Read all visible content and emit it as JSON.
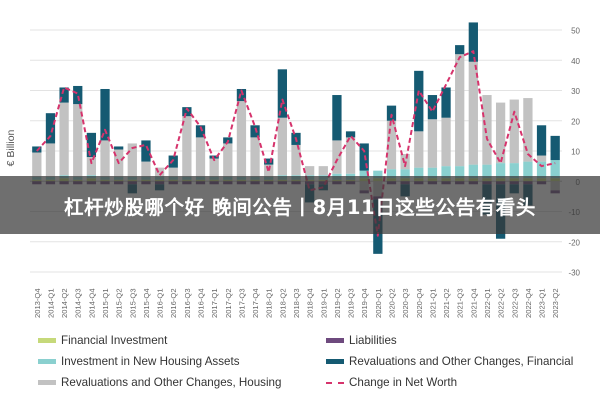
{
  "banner": {
    "text": "杠杆炒股哪个好 晚间公告丨8月11日这些公告有看头"
  },
  "colors": {
    "Financial Investment": "#c6d97a",
    "Investment in New Housing Assets": "#8ad0cf",
    "Revaluations and Other Changes, Housing": "#c2c2c2",
    "Liabilities": "#6e4a7e",
    "Revaluations and Other Changes, Financial": "#155a72",
    "Change in Net Worth": "#d6336c"
  },
  "chart_data": {
    "type": "bar",
    "stacked": true,
    "ylabel": "€ Billion",
    "ylim": [
      -30,
      50
    ],
    "yticks": [
      -30,
      -20,
      -10,
      0,
      10,
      20,
      30,
      40,
      50
    ],
    "grid": true,
    "legend_position": "bottom",
    "categories": [
      "2013-Q4",
      "2014-Q1",
      "2014-Q2",
      "2014-Q3",
      "2014-Q4",
      "2015-Q1",
      "2015-Q2",
      "2015-Q3",
      "2015-Q4",
      "2016-Q1",
      "2016-Q2",
      "2016-Q3",
      "2016-Q4",
      "2017-Q1",
      "2017-Q2",
      "2017-Q3",
      "2017-Q4",
      "2018-Q1",
      "2018-Q2",
      "2018-Q3",
      "2018-Q4",
      "2019-Q1",
      "2019-Q2",
      "2019-Q3",
      "2019-Q4",
      "2020-Q1",
      "2020-Q2",
      "2020-Q3",
      "2020-Q4",
      "2021-Q1",
      "2021-Q2",
      "2021-Q3",
      "2021-Q4",
      "2022-Q1",
      "2022-Q2",
      "2022-Q3",
      "2022-Q4",
      "2023-Q1",
      "2023-Q2"
    ],
    "series": [
      {
        "name": "Financial Investment",
        "kind": "bar",
        "values": [
          0.5,
          0.5,
          1,
          0.5,
          1,
          0.5,
          0.5,
          0.5,
          0.5,
          0.5,
          0.5,
          0.5,
          0.5,
          0.5,
          0.5,
          0.5,
          0.5,
          0.5,
          0.5,
          0.5,
          0.5,
          0.5,
          0.5,
          0.5,
          1,
          1,
          1,
          1,
          1,
          1,
          1,
          1,
          1,
          1,
          1,
          1,
          1,
          1,
          1
        ]
      },
      {
        "name": "Investment in New Housing Assets",
        "kind": "bar",
        "values": [
          1,
          1,
          1,
          1,
          1,
          1,
          1,
          1,
          1,
          1,
          1,
          1,
          1,
          1,
          1,
          1,
          1,
          1,
          1.5,
          1.5,
          1.5,
          1.5,
          2,
          2,
          2.5,
          2.5,
          3,
          3,
          3.5,
          3.5,
          4,
          4,
          4.5,
          4.5,
          5,
          5,
          5.5,
          5.5,
          6
        ]
      },
      {
        "name": "Revaluations and Other Changes, Housing",
        "kind": "bar",
        "values": [
          8,
          11,
          24,
          24,
          6,
          12,
          9,
          11,
          5,
          3,
          3,
          20,
          13,
          6,
          11,
          25,
          13,
          4,
          19,
          10,
          3,
          3,
          11,
          12,
          -3,
          -5,
          16,
          5,
          12,
          16,
          16,
          37,
          34,
          23,
          20,
          21,
          21,
          2,
          -3
        ]
      },
      {
        "name": "Liabilities",
        "kind": "bar",
        "values": [
          -1,
          -1,
          -1,
          -1,
          -1,
          -1,
          -1,
          -1,
          -1,
          -1,
          -1,
          -1,
          -1,
          -1,
          -1,
          -1,
          -1,
          -1,
          -1,
          -1,
          -1,
          -1,
          -1,
          -1,
          -1,
          -1,
          -1,
          -1,
          -1,
          -1,
          -1,
          -1,
          -1,
          -1,
          -1,
          -1,
          -1,
          -1,
          -1
        ]
      },
      {
        "name": "Revaluations and Other Changes, Financial",
        "kind": "bar",
        "values": [
          2,
          10,
          5,
          6,
          8,
          17,
          1,
          -3,
          7,
          -2,
          4,
          3,
          4,
          1,
          2,
          4,
          4,
          2,
          16,
          4,
          -6,
          -2,
          15,
          2,
          9,
          -18,
          5,
          -4,
          20,
          8,
          10,
          3,
          13,
          -10,
          -18,
          -3,
          -7,
          10,
          8
        ]
      },
      {
        "name": "Change in Net Worth",
        "kind": "line",
        "values": [
          10,
          15,
          31,
          29,
          6,
          17,
          6,
          11,
          12,
          2,
          7,
          24,
          18,
          7,
          13,
          30,
          18,
          3,
          27,
          14,
          -3,
          -2,
          7,
          15,
          10,
          -18,
          22,
          5,
          30,
          23,
          32,
          41,
          43,
          14,
          6,
          23,
          9,
          5,
          6
        ]
      }
    ]
  }
}
